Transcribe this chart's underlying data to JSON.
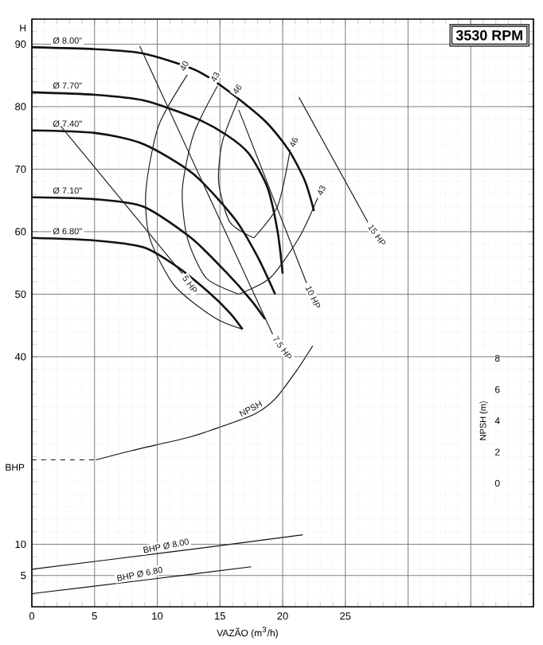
{
  "chart_data": {
    "type": "line",
    "title": "3530 RPM",
    "xlabel": "VAZÃO (m$^{3}$/h)",
    "ylabel": "H",
    "y2label": "NPSH (m)",
    "annotations": [
      "BHP"
    ],
    "grid": true,
    "xlim": [
      0,
      40
    ],
    "ylim": [
      0,
      94
    ],
    "y2lim": [
      -7.9,
      29.7
    ],
    "xticks": [
      0,
      5,
      10,
      15,
      20,
      25,
      {
        "value": 30,
        "label": null
      },
      {
        "value": 35,
        "label": null
      },
      {
        "value": 40,
        "label": null
      }
    ],
    "yticks": [
      5,
      10,
      40,
      50,
      60,
      70,
      80,
      90
    ],
    "y2ticks": [
      0,
      2,
      4,
      6,
      8
    ],
    "series": [
      {
        "name": "Ø 8.00\"",
        "color": "#111111",
        "x": [
          0,
          5,
          8.9,
          13,
          15.6,
          18.6,
          20.5,
          21.8,
          22.5
        ],
        "values": [
          89.5,
          89.2,
          88.5,
          85.9,
          82.6,
          77.7,
          73,
          68,
          63.3
        ]
      },
      {
        "name": "Ø 7.70\"",
        "color": "#111111",
        "x": [
          0,
          5,
          8.9,
          13,
          15.5,
          17.3,
          18.8,
          19.6,
          20
        ],
        "values": [
          82.3,
          81.9,
          81,
          78.2,
          75.5,
          72.5,
          67,
          60,
          53.3
        ]
      },
      {
        "name": "Ø 7.40\"",
        "color": "#111111",
        "x": [
          0,
          5,
          8.9,
          12.9,
          16.2,
          18,
          19.4
        ],
        "values": [
          76.2,
          75.8,
          74,
          69.2,
          62,
          56,
          50
        ]
      },
      {
        "name": "Ø 7.10\"",
        "color": "#111111",
        "x": [
          0,
          5,
          8.9,
          12.7,
          15.5,
          17.5,
          18.6
        ],
        "values": [
          65.5,
          65.2,
          64,
          59,
          53.5,
          49,
          46
        ]
      },
      {
        "name": "Ø 6.80\"",
        "color": "#111111",
        "x": [
          0,
          5,
          8.9,
          11.5,
          14,
          15.8,
          16.8
        ],
        "values": [
          59,
          58.6,
          57.5,
          54.5,
          50.5,
          47,
          44.4
        ]
      },
      {
        "name": "40",
        "color": "#222222",
        "x": [
          12.4,
          10.1,
          9.1,
          9.4,
          11.4,
          14.6,
          16.8
        ],
        "values": [
          85.1,
          76.9,
          66.7,
          59,
          51.3,
          46.2,
          44.4
        ]
      },
      {
        "name": "43",
        "color": "#222222",
        "x": [
          14.8,
          12.9,
          12,
          12.4,
          13.9,
          16.5
        ],
        "values": [
          83.3,
          75.6,
          66.7,
          59,
          52.6,
          50
        ]
      },
      {
        "name": "43",
        "color": "#222222",
        "x": [
          22.8,
          21.3,
          19,
          16.5
        ],
        "values": [
          65.4,
          59,
          52.6,
          50
        ]
      },
      {
        "name": "46",
        "color": "#222222",
        "x": [
          16.5,
          15.2,
          14.9,
          15.8,
          17.7
        ],
        "values": [
          81.3,
          74.4,
          67.9,
          61.5,
          59
        ]
      },
      {
        "name": "46",
        "color": "#222222",
        "x": [
          20.6,
          19.6,
          17.7
        ],
        "values": [
          73.1,
          64.1,
          59
        ]
      },
      {
        "name": "5 HP",
        "color": "#222222",
        "x": [
          2.3,
          12
        ],
        "values": [
          76.9,
          53.3
        ]
      },
      {
        "name": "7.5 HP",
        "color": "#222222",
        "x": [
          8.6,
          19.2
        ],
        "values": [
          89.7,
          43.6
        ]
      },
      {
        "name": "10 HP",
        "color": "#222222",
        "x": [
          16.5,
          21.9
        ],
        "values": [
          79.5,
          51.8
        ]
      },
      {
        "name": "15 HP",
        "color": "#222222",
        "x": [
          21.3,
          26.8
        ],
        "values": [
          81.5,
          61.5
        ]
      },
      {
        "color": "#111111",
        "axis": "y2",
        "line_style": "dashed",
        "x": [
          0,
          5.1
        ],
        "values": [
          1.5,
          1.5
        ]
      },
      {
        "name": "NPSH",
        "color": "#111111",
        "axis": "y2",
        "x": [
          5.1,
          8,
          12.3,
          14.3,
          17.7,
          19.4,
          21.1,
          22.4
        ],
        "values": [
          1.5,
          2.1,
          2.9,
          3.4,
          4.4,
          5.4,
          7.2,
          8.8
        ]
      },
      {
        "name": "BHP Ø 8.00",
        "color": "#111111",
        "x": [
          0,
          10.8,
          21.6
        ],
        "values": [
          6,
          8.7,
          11.5
        ]
      },
      {
        "name": "BHP Ø 6.80",
        "color": "#111111",
        "x": [
          0,
          8.7,
          17.5
        ],
        "values": [
          2.1,
          4.2,
          6.4
        ]
      }
    ]
  }
}
